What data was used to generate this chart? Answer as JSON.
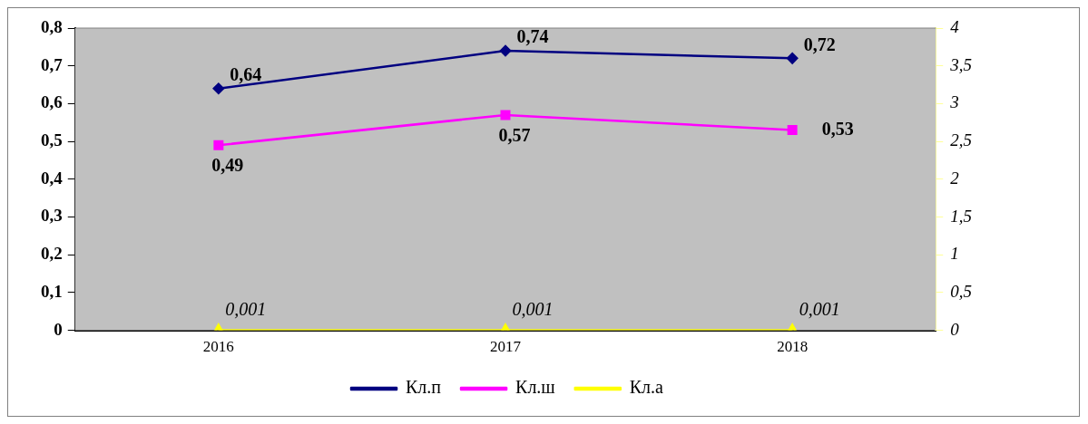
{
  "chart_data": {
    "type": "line",
    "categories": [
      "2016",
      "2017",
      "2018"
    ],
    "series": [
      {
        "name": "Кл.п",
        "color": "#000080",
        "values": [
          0.64,
          0.74,
          0.72
        ],
        "marker": "diamond",
        "value_labels": [
          "0,64",
          "0,74",
          "0,72"
        ]
      },
      {
        "name": "Кл.ш",
        "color": "#ff00ff",
        "values": [
          0.49,
          0.57,
          0.53
        ],
        "marker": "square",
        "value_labels": [
          "0,49",
          "0,57",
          "0,53"
        ]
      },
      {
        "name": "Кл.а",
        "color": "#ffff00",
        "values": [
          0.001,
          0.001,
          0.001
        ],
        "marker": "triangle",
        "axis": "y2",
        "value_labels": [
          "0,001",
          "0,001",
          "0,001"
        ]
      }
    ],
    "ylim": [
      0,
      0.8
    ],
    "yticks": [
      {
        "value": 0,
        "label": "0"
      },
      {
        "value": 0.1,
        "label": "0,1"
      },
      {
        "value": 0.2,
        "label": "0,2"
      },
      {
        "value": 0.3,
        "label": "0,3"
      },
      {
        "value": 0.4,
        "label": "0,4"
      },
      {
        "value": 0.5,
        "label": "0,5"
      },
      {
        "value": 0.6,
        "label": "0,6"
      },
      {
        "value": 0.7,
        "label": "0,7"
      },
      {
        "value": 0.8,
        "label": "0,8"
      }
    ],
    "y2lim": [
      0,
      4
    ],
    "y2ticks": [
      0,
      {
        "value": 0.5,
        "label": "0,5"
      },
      1,
      {
        "value": 1.5,
        "label": "1,5"
      },
      2,
      {
        "value": 2.5,
        "label": "2,5"
      },
      3,
      {
        "value": 3.5,
        "label": "3,5"
      },
      4
    ],
    "grid": false,
    "legend": "bottom"
  }
}
